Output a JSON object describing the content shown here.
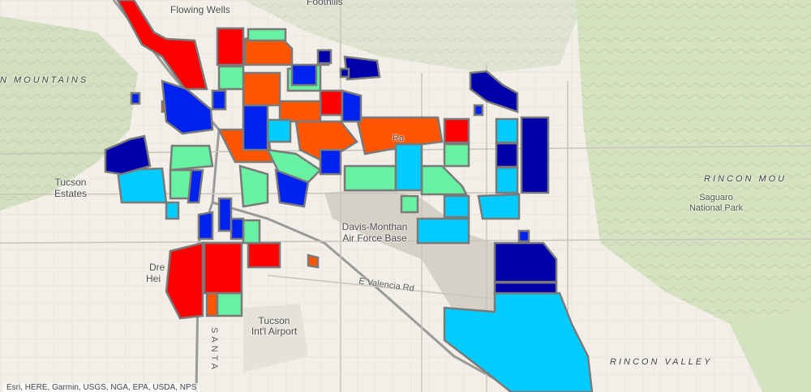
{
  "labels": {
    "flowing_wells": "Flowing Wells",
    "foothills": "Foothills",
    "mountains": "N MOUNTAINS",
    "tucson_estates_1": "Tucson",
    "tucson_estates_2": "Estates",
    "davis_monthan_1": "Davis-Monthan",
    "davis_monthan_2": "Air Force Base",
    "rincon_mou": "RINCON MOU",
    "saguaro_1": "Saguaro",
    "saguaro_2": "National Park",
    "valencia_rd": "E Valencia Rd",
    "tucson_airport_1": "Tucson",
    "tucson_airport_2": "Int'l Airport",
    "drexel_1": "Dre",
    "drexel_2": "Hei",
    "rincon_valley": "RINCON VALLEY",
    "santa": "SANTA",
    "road_fragment": "Ra"
  },
  "attribution": "Esri, HERE, Garmin, USGS, NGA, EPA, USDA, NPS",
  "legend_colors": {
    "red": "#ff0000",
    "orange_red": "#ff5500",
    "light_green": "#66f2a0",
    "cyan": "#00ccff",
    "blue": "#0022ee",
    "dark_blue": "#0000aa",
    "outline": "#7a7a7a",
    "military_land": "#d6d1c6",
    "park_land": "#cfe0b6"
  }
}
